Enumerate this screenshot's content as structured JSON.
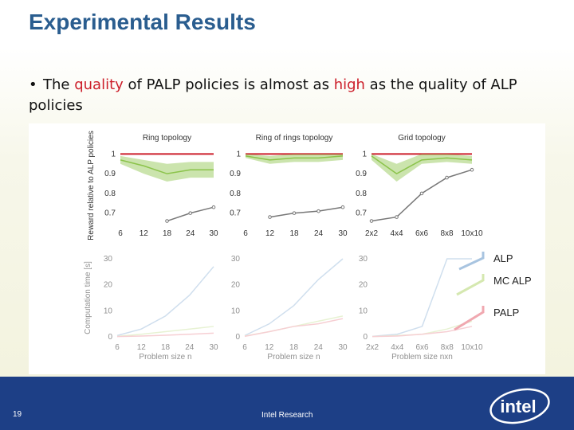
{
  "slide": {
    "title": "Experimental Results",
    "bullet": {
      "part1": "The ",
      "quality": "quality",
      "part2": " of PALP policies is almost as ",
      "high": "high",
      "part3": " as the quality of ALP policies"
    },
    "page_number": "19",
    "footer_text": "Intel Research",
    "logo_text": "intel",
    "colors": {
      "title": "#2a5d8f",
      "highlight": "#cc1e2a",
      "footer": "#1d3f86"
    }
  },
  "chart_data": [
    {
      "type": "line",
      "panel": "reward-ring",
      "title": "Ring topology",
      "ylabel": "Reward relative to ALP policies",
      "xlabel": "",
      "x": [
        6,
        12,
        18,
        24,
        30
      ],
      "xticks": [
        "6",
        "12",
        "18",
        "24",
        "30"
      ],
      "ylim": [
        0.65,
        1.03
      ],
      "yticks": [
        "1",
        "0.9",
        "0.8",
        "0.7"
      ],
      "series": [
        {
          "key": "ALP",
          "color": "#cc1e2a",
          "values": [
            1,
            1,
            1,
            1,
            1
          ]
        },
        {
          "key": "MC ALP",
          "color": "#8bc34a",
          "values": [
            0.97,
            0.94,
            0.9,
            0.92,
            0.92
          ],
          "band_low": [
            0.95,
            0.9,
            0.86,
            0.88,
            0.88
          ],
          "band_high": [
            0.99,
            0.97,
            0.95,
            0.96,
            0.96
          ]
        },
        {
          "key": "PALP",
          "color": "#777777",
          "values": [
            null,
            null,
            0.66,
            0.7,
            0.73
          ]
        }
      ]
    },
    {
      "type": "line",
      "panel": "reward-ringofrings",
      "title": "Ring of rings topology",
      "xlabel": "",
      "x": [
        6,
        12,
        18,
        24,
        30
      ],
      "xticks": [
        "6",
        "12",
        "18",
        "24",
        "30"
      ],
      "ylim": [
        0.65,
        1.03
      ],
      "yticks": [
        "1",
        "0.9",
        "0.8",
        "0.7"
      ],
      "series": [
        {
          "key": "ALP",
          "color": "#cc1e2a",
          "values": [
            1,
            1,
            1,
            1,
            1
          ]
        },
        {
          "key": "MC ALP",
          "color": "#8bc34a",
          "values": [
            0.99,
            0.97,
            0.98,
            0.98,
            0.99
          ],
          "band_low": [
            0.98,
            0.95,
            0.96,
            0.96,
            0.97
          ],
          "band_high": [
            1.0,
            0.99,
            1.0,
            1.0,
            1.0
          ]
        },
        {
          "key": "PALP",
          "color": "#777777",
          "values": [
            null,
            0.68,
            0.7,
            0.71,
            0.73
          ]
        }
      ]
    },
    {
      "type": "line",
      "panel": "reward-grid",
      "title": "Grid topology",
      "xlabel": "",
      "x": [
        1,
        2,
        3,
        4,
        5
      ],
      "xticks": [
        "2x2",
        "4x4",
        "6x6",
        "8x8",
        "10x10"
      ],
      "ylim": [
        0.65,
        1.03
      ],
      "yticks": [
        "1",
        "0.9",
        "0.8",
        "0.7"
      ],
      "series": [
        {
          "key": "ALP",
          "color": "#cc1e2a",
          "values": [
            1,
            1,
            1,
            1,
            1
          ]
        },
        {
          "key": "MC ALP",
          "color": "#8bc34a",
          "values": [
            0.99,
            0.9,
            0.97,
            0.98,
            0.97
          ],
          "band_low": [
            0.97,
            0.86,
            0.95,
            0.96,
            0.95
          ],
          "band_high": [
            1.0,
            0.95,
            1.0,
            1.0,
            0.99
          ]
        },
        {
          "key": "PALP",
          "color": "#777777",
          "values": [
            0.66,
            0.68,
            0.8,
            0.88,
            0.92
          ]
        }
      ]
    },
    {
      "type": "line",
      "panel": "time-ring",
      "ylabel": "Computation time [s]",
      "xlabel": "Problem size n",
      "x": [
        6,
        12,
        18,
        24,
        30
      ],
      "xticks": [
        "6",
        "12",
        "18",
        "24",
        "30"
      ],
      "ylim": [
        0,
        30
      ],
      "yticks": [
        "30",
        "20",
        "10",
        "0"
      ],
      "series": [
        {
          "key": "ALP",
          "color": "#a8c4e0",
          "values": [
            0.5,
            3,
            8,
            16,
            27
          ]
        },
        {
          "key": "MC ALP",
          "color": "#d5e8b0",
          "values": [
            0.2,
            1,
            2,
            3,
            4
          ]
        },
        {
          "key": "PALP",
          "color": "#f0a8b0",
          "values": [
            0.1,
            0.3,
            0.6,
            1,
            1.4
          ]
        }
      ]
    },
    {
      "type": "line",
      "panel": "time-ringofrings",
      "xlabel": "Problem size n",
      "x": [
        6,
        12,
        18,
        24,
        30
      ],
      "xticks": [
        "6",
        "12",
        "18",
        "24",
        "30"
      ],
      "ylim": [
        0,
        30
      ],
      "yticks": [
        "30",
        "20",
        "10",
        "0"
      ],
      "series": [
        {
          "key": "ALP",
          "color": "#a8c4e0",
          "values": [
            0.5,
            5,
            12,
            22,
            30
          ]
        },
        {
          "key": "MC ALP",
          "color": "#d5e8b0",
          "values": [
            0.3,
            2,
            4,
            6,
            8
          ]
        },
        {
          "key": "PALP",
          "color": "#f0a8b0",
          "values": [
            0.2,
            2,
            4,
            5,
            7
          ]
        }
      ]
    },
    {
      "type": "line",
      "panel": "time-grid",
      "xlabel": "Problem size nxn",
      "x": [
        1,
        2,
        3,
        4,
        5
      ],
      "xticks": [
        "2x2",
        "4x4",
        "6x6",
        "8x8",
        "10x10"
      ],
      "ylim": [
        0,
        30
      ],
      "yticks": [
        "30",
        "20",
        "10",
        "0"
      ],
      "series": [
        {
          "key": "ALP",
          "color": "#a8c4e0",
          "values": [
            0.2,
            1,
            4,
            30,
            30
          ]
        },
        {
          "key": "MC ALP",
          "color": "#d5e8b0",
          "values": [
            0.1,
            0.5,
            1,
            3,
            6
          ]
        },
        {
          "key": "PALP",
          "color": "#f0a8b0",
          "values": [
            0.1,
            0.3,
            1,
            2,
            4
          ]
        }
      ]
    }
  ],
  "legend": [
    {
      "label": "ALP",
      "color": "#a8c4e0"
    },
    {
      "label": "MC ALP",
      "color": "#d5e8b0"
    },
    {
      "label": "PALP",
      "color": "#f0a8b0"
    }
  ]
}
